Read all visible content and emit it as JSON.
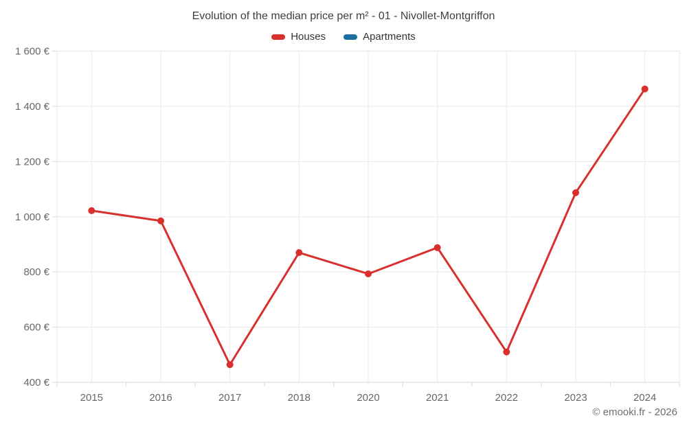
{
  "title": "Evolution of the median price per m² - 01 - Nivollet-Montgriffon",
  "legend": [
    {
      "label": "Houses",
      "color": "#d9302e"
    },
    {
      "label": "Apartments",
      "color": "#1a6fa0"
    }
  ],
  "footer": {
    "credit": "© emooki.fr - 2026"
  },
  "chart_data": {
    "type": "line",
    "title": "Evolution of the median price per m² - 01 - Nivollet-Montgriffon",
    "categories": [
      "2015",
      "2016",
      "2017",
      "2018",
      "2020",
      "2021",
      "2022",
      "2023",
      "2024"
    ],
    "series": [
      {
        "name": "Houses",
        "color": "#d9302e",
        "values": [
          1022,
          985,
          464,
          870,
          793,
          888,
          510,
          1087,
          1463
        ]
      },
      {
        "name": "Apartments",
        "color": "#1a6fa0",
        "values": []
      }
    ],
    "xlabel": "",
    "ylabel": "",
    "ylim": [
      400,
      1600
    ],
    "ytick_step": 200,
    "yticks": [
      "400 €",
      "600 €",
      "800 €",
      "1 000 €",
      "1 200 €",
      "1 400 €",
      "1 600 €"
    ],
    "grid": true,
    "legend_position": "top"
  }
}
